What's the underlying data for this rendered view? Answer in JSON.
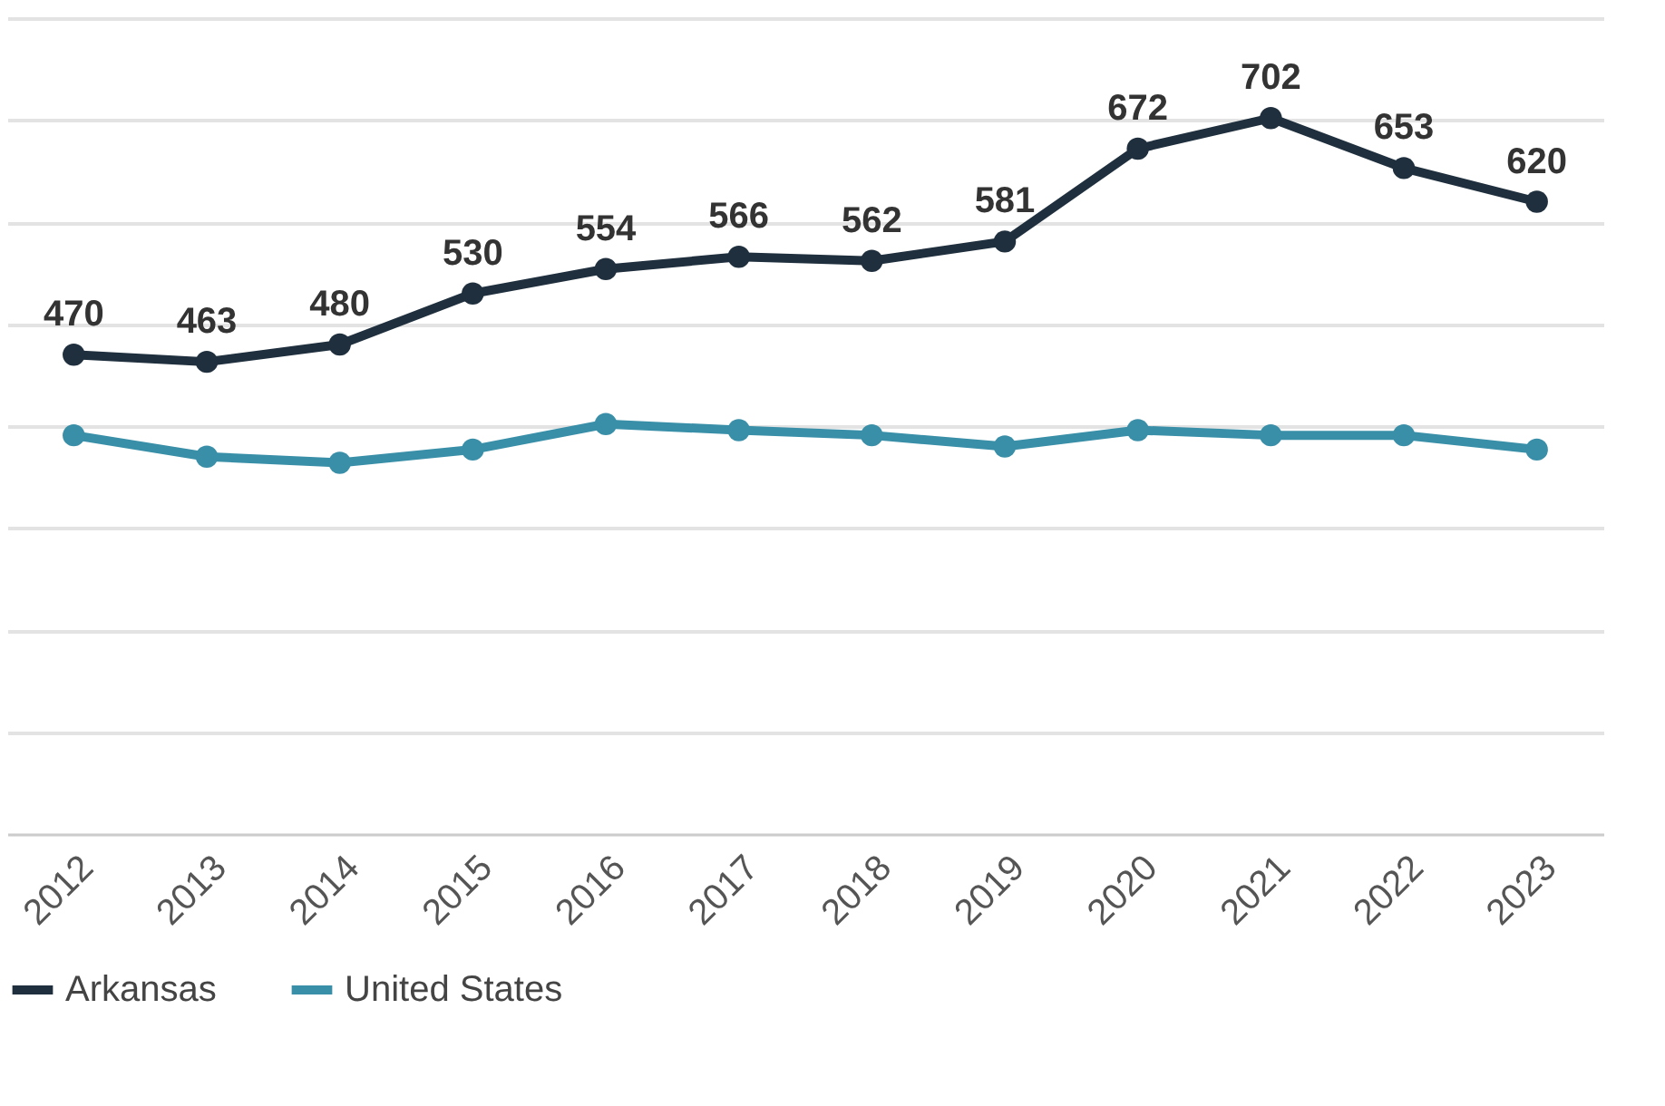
{
  "chart_data": {
    "type": "line",
    "categories": [
      "2012",
      "2013",
      "2014",
      "2015",
      "2016",
      "2017",
      "2018",
      "2019",
      "2020",
      "2021",
      "2022",
      "2023"
    ],
    "series": [
      {
        "name": "Arkansas",
        "color": "#1f2f3d",
        "values": [
          470,
          463,
          480,
          530,
          554,
          566,
          562,
          581,
          672,
          702,
          653,
          620
        ],
        "value_labels": [
          "470",
          "463",
          "480",
          "530",
          "554",
          "566",
          "562",
          "581",
          "672",
          "702",
          "653",
          "620"
        ]
      },
      {
        "name": "United States",
        "color": "#3a8fa8",
        "values": [
          391,
          370,
          364,
          377,
          402,
          396,
          391,
          380,
          396,
          391,
          391,
          377
        ]
      }
    ],
    "ylim": [
      0,
      800
    ],
    "yticks": [
      {
        "value": 0,
        "label": null
      },
      {
        "value": 100,
        "label": null
      },
      {
        "value": 200,
        "label": null
      },
      {
        "value": 300,
        "label": null
      },
      {
        "value": 400,
        "label": null
      },
      {
        "value": 500,
        "label": null
      },
      {
        "value": 600,
        "label": null
      },
      {
        "value": 700,
        "label": null
      },
      {
        "value": 800,
        "label": null
      }
    ],
    "grid": "y",
    "legend": "bottom",
    "marker": "circle",
    "line_style": "solid",
    "tick_labels": "x"
  }
}
